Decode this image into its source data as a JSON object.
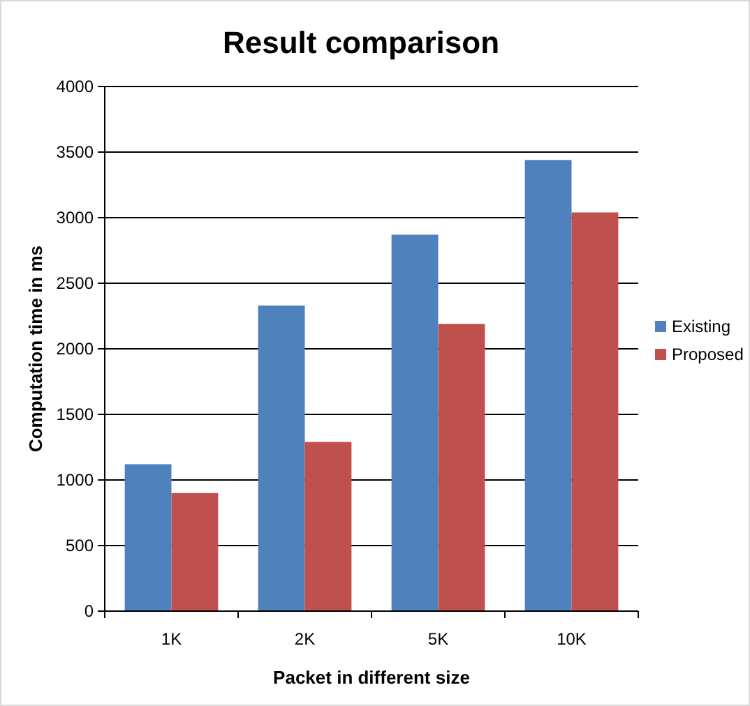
{
  "chart_data": {
    "type": "bar",
    "title": "Result comparison",
    "xlabel": "Packet in different size",
    "ylabel": "Computation time in ms",
    "categories": [
      "1K",
      "2K",
      "5K",
      "10K"
    ],
    "series": [
      {
        "name": "Existing",
        "color": "#4f81bd",
        "values": [
          1120,
          2330,
          2870,
          3440
        ]
      },
      {
        "name": "Proposed",
        "color": "#c0504d",
        "values": [
          900,
          1290,
          2190,
          3040
        ]
      }
    ],
    "ylim": [
      0,
      4000
    ],
    "yticks": [
      0,
      500,
      1000,
      1500,
      2000,
      2500,
      3000,
      3500,
      4000
    ],
    "grid": "y",
    "legend": "right"
  }
}
